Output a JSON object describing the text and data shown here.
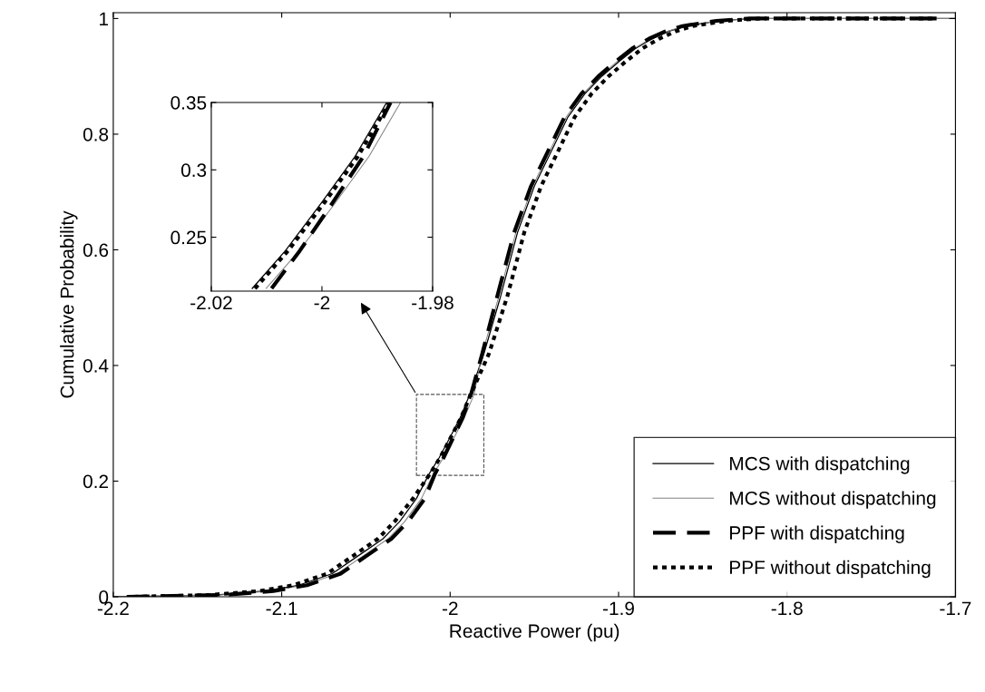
{
  "chart_data": [
    {
      "type": "line",
      "xlabel": "Reactive Power (pu)",
      "ylabel": "Cumulative Probability",
      "xlim": [
        -2.2,
        -1.7
      ],
      "ylim": [
        0,
        1.01
      ],
      "xticks": [
        -2.2,
        -2.1,
        -2,
        -1.9,
        -1.8,
        -1.7
      ],
      "yticks": [
        0,
        0.2,
        0.4,
        0.6,
        0.8,
        1
      ],
      "grid": false,
      "legend": "bottom right",
      "series": [
        {
          "name": "MCS with dispatching",
          "color": "#000000",
          "line_style": "solid",
          "x": [
            -2.2,
            -2.14,
            -2.11,
            -2.09,
            -2.07,
            -2.055,
            -2.04,
            -2.03,
            -2.02,
            -2.0126,
            -2.0066,
            -2.0,
            -1.994,
            -1.9883,
            -1.98,
            -1.97,
            -1.96,
            -1.95,
            -1.94,
            -1.93,
            -1.92,
            -1.91,
            -1.9,
            -1.89,
            -1.88,
            -1.87,
            -1.86,
            -1.84,
            -1.82,
            -1.7
          ],
          "values": [
            0,
            0.003,
            0.01,
            0.02,
            0.04,
            0.07,
            0.1,
            0.13,
            0.17,
            0.212,
            0.24,
            0.276,
            0.31,
            0.35,
            0.42,
            0.52,
            0.63,
            0.71,
            0.77,
            0.83,
            0.87,
            0.9,
            0.925,
            0.948,
            0.965,
            0.978,
            0.987,
            0.996,
            1.0,
            1.0
          ]
        },
        {
          "name": "MCS without dispatching",
          "color": "#808080",
          "line_style": "solid",
          "x": [
            -2.196,
            -2.137,
            -2.107,
            -2.087,
            -2.067,
            -2.052,
            -2.037,
            -2.027,
            -2.017,
            -2.0101,
            -2.0041,
            -1.9975,
            -1.9915,
            -1.9858,
            -1.981,
            -1.971,
            -1.961,
            -1.951,
            -1.941,
            -1.931,
            -1.921,
            -1.911,
            -1.901,
            -1.891,
            -1.881,
            -1.871,
            -1.861,
            -1.841,
            -1.821,
            -1.704
          ],
          "values": [
            0,
            0.003,
            0.01,
            0.02,
            0.04,
            0.07,
            0.1,
            0.13,
            0.17,
            0.212,
            0.24,
            0.276,
            0.31,
            0.35,
            0.42,
            0.52,
            0.63,
            0.71,
            0.77,
            0.83,
            0.87,
            0.9,
            0.925,
            0.948,
            0.965,
            0.978,
            0.987,
            0.996,
            1.0,
            1.0
          ]
        },
        {
          "name": "PPF with dispatching",
          "color": "#000000",
          "line_style": "dashed",
          "x": [
            -2.192,
            -2.135,
            -2.105,
            -2.085,
            -2.065,
            -2.05,
            -2.035,
            -2.025,
            -2.015,
            -2.0091,
            -2.004,
            -1.998,
            -1.9925,
            -1.9876,
            -1.981,
            -1.972,
            -1.962,
            -1.952,
            -1.942,
            -1.932,
            -1.922,
            -1.912,
            -1.902,
            -1.892,
            -1.882,
            -1.872,
            -1.862,
            -1.842,
            -1.822,
            -1.708
          ],
          "values": [
            0,
            0.003,
            0.01,
            0.02,
            0.04,
            0.07,
            0.1,
            0.13,
            0.17,
            0.212,
            0.24,
            0.276,
            0.31,
            0.35,
            0.42,
            0.52,
            0.63,
            0.71,
            0.77,
            0.83,
            0.87,
            0.9,
            0.925,
            0.948,
            0.965,
            0.978,
            0.987,
            0.996,
            1.0,
            1.0
          ]
        },
        {
          "name": "PPF without dispatching",
          "color": "#000000",
          "line_style": "dotted",
          "x": [
            -2.188,
            -2.143,
            -2.113,
            -2.093,
            -2.073,
            -2.058,
            -2.043,
            -2.033,
            -2.022,
            -2.0121,
            -2.0061,
            -1.9995,
            -1.9935,
            -1.9878,
            -1.977,
            -1.966,
            -1.956,
            -1.946,
            -1.936,
            -1.926,
            -1.916,
            -1.906,
            -1.896,
            -1.886,
            -1.876,
            -1.866,
            -1.856,
            -1.836,
            -1.816,
            -1.712
          ],
          "values": [
            0,
            0.003,
            0.01,
            0.02,
            0.04,
            0.07,
            0.1,
            0.13,
            0.17,
            0.212,
            0.24,
            0.276,
            0.31,
            0.35,
            0.42,
            0.52,
            0.63,
            0.71,
            0.77,
            0.83,
            0.87,
            0.9,
            0.925,
            0.948,
            0.965,
            0.978,
            0.987,
            0.996,
            1.0,
            1.0
          ]
        }
      ]
    },
    {
      "type": "line",
      "xlim": [
        -2.02,
        -1.98
      ],
      "ylim": [
        0.21,
        0.35
      ],
      "xticks": [
        -2.02,
        -2,
        -1.98
      ],
      "yticks": [
        0.25,
        0.3,
        0.35
      ],
      "grid": false,
      "series": [
        {
          "color": "#000000",
          "line_style": "solid",
          "x": [
            -2.0126,
            -2.0066,
            -2.0,
            -1.994,
            -1.9883
          ],
          "values": [
            0.212,
            0.24,
            0.276,
            0.31,
            0.35
          ]
        },
        {
          "color": "#808080",
          "line_style": "solid",
          "x": [
            -2.0101,
            -2.0041,
            -1.9975,
            -1.9915,
            -1.9858
          ],
          "values": [
            0.212,
            0.24,
            0.276,
            0.31,
            0.35
          ]
        },
        {
          "color": "#000000",
          "line_style": "dashed",
          "x": [
            -2.0091,
            -2.004,
            -1.998,
            -1.9925,
            -1.9876
          ],
          "values": [
            0.212,
            0.24,
            0.276,
            0.31,
            0.35
          ]
        },
        {
          "color": "#000000",
          "line_style": "dotted",
          "x": [
            -2.0121,
            -2.0061,
            -1.9995,
            -1.9935,
            -1.9878
          ],
          "values": [
            0.212,
            0.24,
            0.276,
            0.31,
            0.35
          ]
        }
      ]
    }
  ]
}
